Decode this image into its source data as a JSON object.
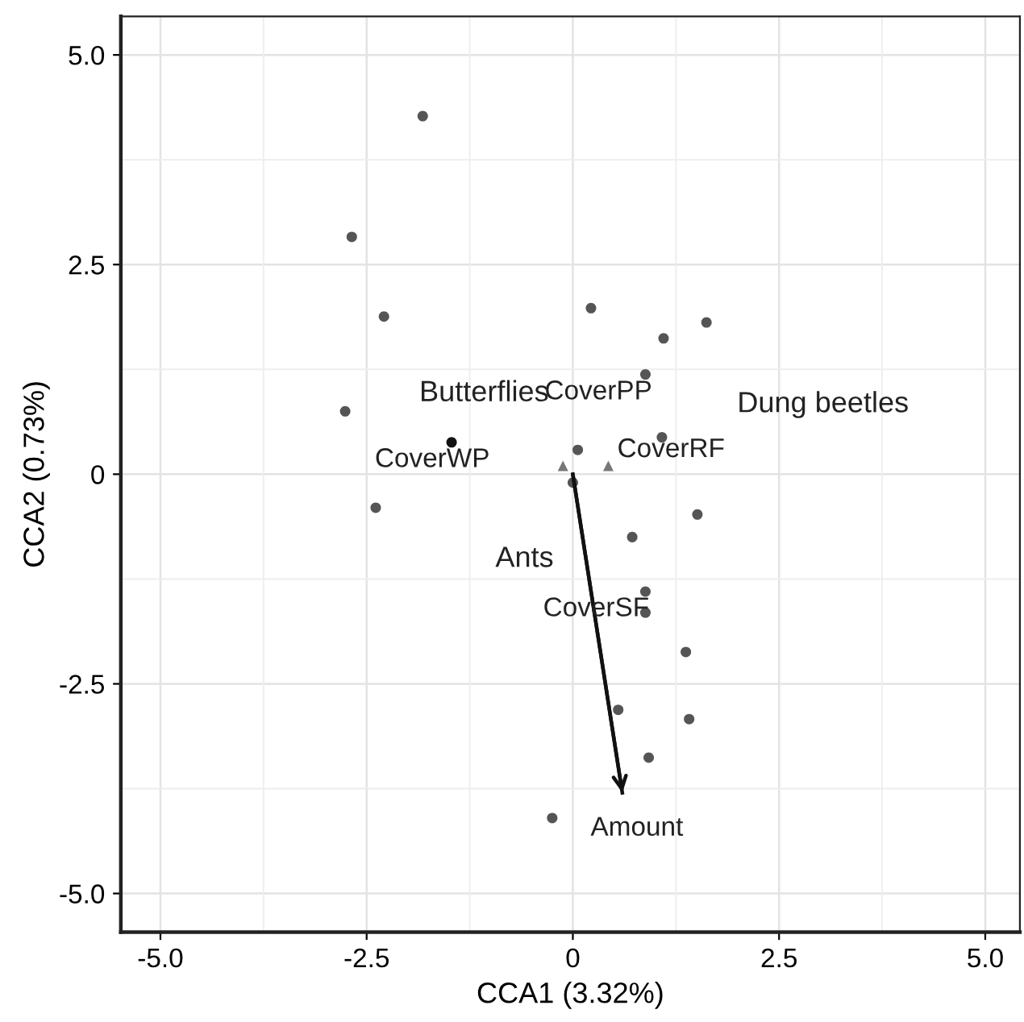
{
  "chart_data": {
    "type": "scatter",
    "xlabel": "CCA1 (3.32%)",
    "ylabel": "CCA2 (0.73%)",
    "xlim": [
      -5.48,
      5.42
    ],
    "ylim": [
      -5.46,
      5.46
    ],
    "xticks": [
      {
        "value": -5,
        "label": "-5.0"
      },
      {
        "value": -2.5,
        "label": "-2.5"
      },
      0,
      {
        "value": 2.5,
        "label": "2.5"
      },
      {
        "value": 5,
        "label": "5.0"
      }
    ],
    "yticks": [
      {
        "value": -5,
        "label": "-5.0"
      },
      {
        "value": -2.5,
        "label": "-2.5"
      },
      0,
      {
        "value": 2.5,
        "label": "2.5"
      },
      {
        "value": 5,
        "label": "5.0"
      }
    ],
    "grid": true,
    "series": [
      {
        "marker": "circle",
        "color": "#555555",
        "x": [
          -1.82,
          -2.68,
          -2.29,
          -2.76,
          -2.39,
          0.22,
          1.1,
          1.62,
          0.88,
          1.08,
          0.06,
          0.0,
          1.51,
          0.72,
          0.88,
          0.88,
          1.37,
          0.55,
          1.41,
          0.92,
          -0.25
        ],
        "values": [
          4.27,
          2.83,
          1.88,
          0.75,
          -0.4,
          1.98,
          1.62,
          1.81,
          1.19,
          0.44,
          0.29,
          -0.1,
          -0.48,
          -0.75,
          -1.4,
          -1.65,
          -2.12,
          -2.81,
          -2.92,
          -3.38,
          -4.1
        ]
      },
      {
        "marker": "circle",
        "color": "#111111",
        "x": [
          -1.47
        ],
        "values": [
          0.38
        ]
      },
      {
        "marker": "triangle",
        "color": "#777777",
        "x": [
          -0.12,
          0.43
        ],
        "values": [
          0.1,
          0.1
        ]
      },
      {
        "type": "line",
        "color": "#111111",
        "x": [
          0,
          0.6
        ],
        "values": [
          0,
          -3.8
        ]
      }
    ],
    "annotations": [
      "Butterflies",
      "Dung beetles",
      "Ants",
      {
        "text": "CoverPP",
        "x": 0.88,
        "y": 1.19
      },
      {
        "text": "CoverRF",
        "x": 0.43,
        "y": 0.1
      },
      {
        "text": "CoverWP",
        "x": -1.47,
        "y": 0.38
      },
      {
        "text": "CoverSF",
        "x": 0.88,
        "y": -1.65
      },
      {
        "text": "Amount",
        "x": 0.6,
        "y": -3.8
      }
    ]
  }
}
